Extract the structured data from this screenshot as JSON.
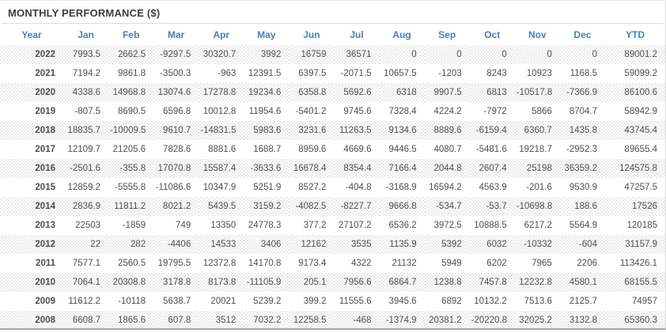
{
  "title": "MONTHLY PERFORMANCE ($)",
  "colors": {
    "header_text": "#4a7ebd",
    "negative_value": "#ef5350",
    "positive_value": "#4f4f4f",
    "year_text": "#2e2e2e",
    "title_text": "#3a3f44",
    "stripe": "#ebebeb"
  },
  "chart_data": {
    "type": "table",
    "title": "MONTHLY PERFORMANCE ($)",
    "columns": [
      "Year",
      "Jan",
      "Feb",
      "Mar",
      "Apr",
      "May",
      "Jun",
      "Jul",
      "Aug",
      "Sep",
      "Oct",
      "Nov",
      "Dec",
      "YTD"
    ],
    "rows": [
      {
        "year": "2022",
        "values": [
          "7993.5",
          "2662.5",
          "-9297.5",
          "30320.7",
          "3992",
          "16759",
          "36571",
          "0",
          "0",
          "0",
          "0",
          "0",
          "89001.2"
        ]
      },
      {
        "year": "2021",
        "values": [
          "7194.2",
          "9861.8",
          "-3500.3",
          "-963",
          "12391.5",
          "6397.5",
          "-2071.5",
          "10657.5",
          "-1203",
          "8243",
          "10923",
          "1168.5",
          "59099.2"
        ]
      },
      {
        "year": "2020",
        "values": [
          "4338.6",
          "14968.8",
          "13074.6",
          "17278.8",
          "19234.6",
          "6358.8",
          "5692.6",
          "6318",
          "9907.5",
          "6813",
          "-10517.8",
          "-7366.9",
          "86100.6"
        ]
      },
      {
        "year": "2019",
        "values": [
          "-807.5",
          "8690.5",
          "6596.8",
          "10012.8",
          "11954.6",
          "-5401.2",
          "9745.6",
          "7328.4",
          "4224.2",
          "-7972",
          "5866",
          "8704.7",
          "58942.9"
        ]
      },
      {
        "year": "2018",
        "values": [
          "18835.7",
          "-10009.5",
          "9610.7",
          "-14831.5",
          "5983.6",
          "3231.6",
          "11263.5",
          "9134.6",
          "8889.6",
          "-6159.4",
          "6360.7",
          "1435.8",
          "43745.4"
        ]
      },
      {
        "year": "2017",
        "values": [
          "12109.7",
          "21205.6",
          "7828.6",
          "8881.6",
          "1688.7",
          "8959.6",
          "4669.6",
          "9446.5",
          "4080.7",
          "-5481.6",
          "19218.7",
          "-2952.3",
          "89655.4"
        ]
      },
      {
        "year": "2016",
        "values": [
          "-2501.6",
          "-355.8",
          "17070.8",
          "15587.4",
          "-3633.6",
          "16678.4",
          "8354.4",
          "7166.4",
          "2044.8",
          "2607.4",
          "25198",
          "36359.2",
          "124575.8"
        ]
      },
      {
        "year": "2015",
        "values": [
          "12859.2",
          "-5555.8",
          "-11086.6",
          "10347.9",
          "5251.9",
          "8527.2",
          "-404.8",
          "-3168.9",
          "16594.2",
          "4563.9",
          "-201.6",
          "9530.9",
          "47257.5"
        ]
      },
      {
        "year": "2014",
        "values": [
          "2836.9",
          "11811.2",
          "8021.2",
          "5439.5",
          "3159.2",
          "-4082.5",
          "-8227.7",
          "9666.8",
          "-534.7",
          "-53.7",
          "-10698.8",
          "188.6",
          "17526"
        ]
      },
      {
        "year": "2013",
        "values": [
          "22503",
          "-1859",
          "749",
          "13350",
          "24778.3",
          "377.2",
          "27107.2",
          "6536.2",
          "3972.5",
          "10888.5",
          "6217.2",
          "5564.9",
          "120185"
        ]
      },
      {
        "year": "2012",
        "values": [
          "22",
          "282",
          "-4406",
          "14533",
          "3406",
          "12162",
          "3535",
          "1135.9",
          "5392",
          "6032",
          "-10332",
          "-604",
          "31157.9"
        ]
      },
      {
        "year": "2011",
        "values": [
          "7577.1",
          "2560.5",
          "19795.5",
          "12372.8",
          "14170.8",
          "9173.4",
          "4322",
          "21132",
          "5949",
          "6202",
          "7965",
          "2206",
          "113426.1"
        ]
      },
      {
        "year": "2010",
        "values": [
          "7064.1",
          "20308.8",
          "3178.8",
          "8173.8",
          "-11105.9",
          "205.1",
          "7956.6",
          "6864.7",
          "1238.8",
          "7457.8",
          "12232.8",
          "4580.1",
          "68155.5"
        ]
      },
      {
        "year": "2009",
        "values": [
          "11612.2",
          "-10118",
          "5638.7",
          "20021",
          "5239.2",
          "399.2",
          "11555.6",
          "3945.6",
          "6892",
          "10132.2",
          "7513.6",
          "2125.7",
          "74957"
        ]
      },
      {
        "year": "2008",
        "values": [
          "6608.7",
          "1865.6",
          "607.8",
          "3512",
          "7032.2",
          "12258.5",
          "-468",
          "-1374.9",
          "20381.2",
          "-20220.8",
          "32025.2",
          "3132.8",
          "65360.3"
        ]
      }
    ]
  }
}
